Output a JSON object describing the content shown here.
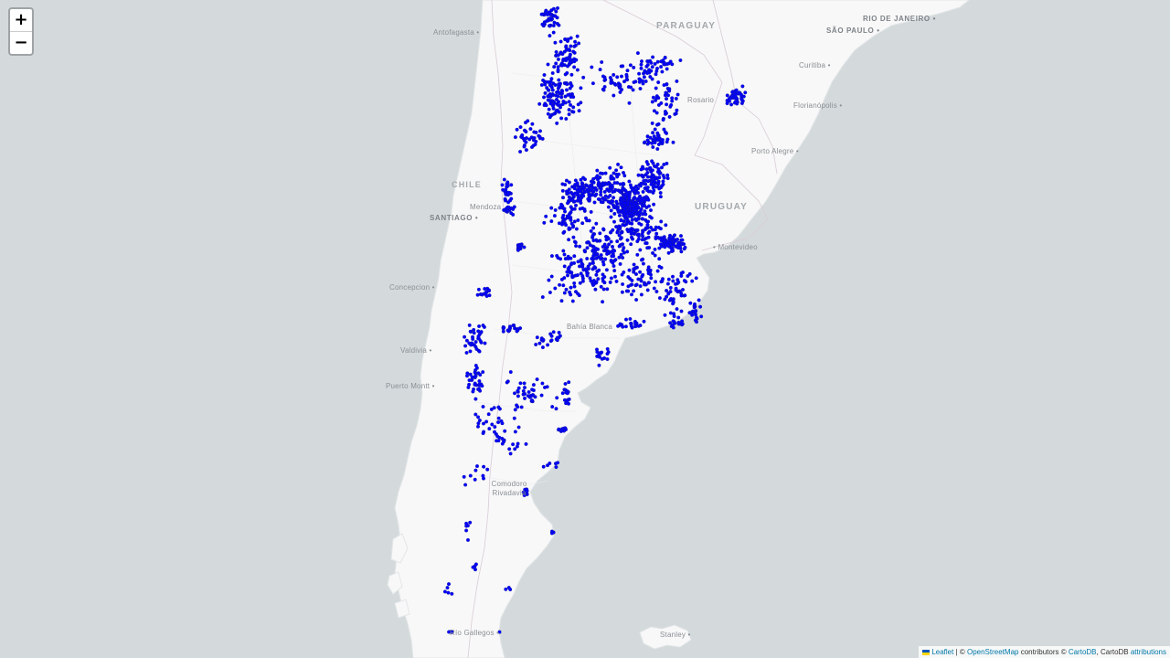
{
  "map": {
    "zoom_in_label": "+",
    "zoom_out_label": "−",
    "marker_color": "#0000ff",
    "marker_stroke": "#1a1aa0",
    "water_color": "#d4dadc",
    "land_color": "#f8f8f8"
  },
  "countries": [
    {
      "name": "PARAGUAY"
    },
    {
      "name": "CHILE"
    },
    {
      "name": "URUGUAY"
    }
  ],
  "cities": [
    {
      "name": "Antofagasta",
      "type": "city"
    },
    {
      "name": "RIO DE JANEIRO",
      "type": "capital"
    },
    {
      "name": "SÃO PAULO",
      "type": "capital"
    },
    {
      "name": "Curitiba",
      "type": "city"
    },
    {
      "name": "Florianópolis",
      "type": "city"
    },
    {
      "name": "Porto Alegre",
      "type": "city"
    },
    {
      "name": "SANTIAGO",
      "type": "capital"
    },
    {
      "name": "Mendoza",
      "type": "city"
    },
    {
      "name": "Montevideo",
      "type": "city"
    },
    {
      "name": "Concepcion",
      "type": "city"
    },
    {
      "name": "Bahía Blanca",
      "type": "city"
    },
    {
      "name": "Valdivia",
      "type": "city"
    },
    {
      "name": "Puerto Montt",
      "type": "city"
    },
    {
      "name": "Comodoro Rivadavia",
      "type": "city"
    },
    {
      "name": "Río Gallegos",
      "type": "city"
    },
    {
      "name": "Stanley",
      "type": "city"
    },
    {
      "name": "Rosario",
      "type": "city"
    }
  ],
  "attribution": {
    "leaflet": "Leaflet",
    "sep": " | © ",
    "osm": "OpenStreetMap",
    "contrib": " contributors © ",
    "carto": "CartoDB",
    "comma": ", CartoDB ",
    "attributions": "attributions",
    "flag_colors": [
      "#0057b7",
      "#ffd700"
    ]
  }
}
